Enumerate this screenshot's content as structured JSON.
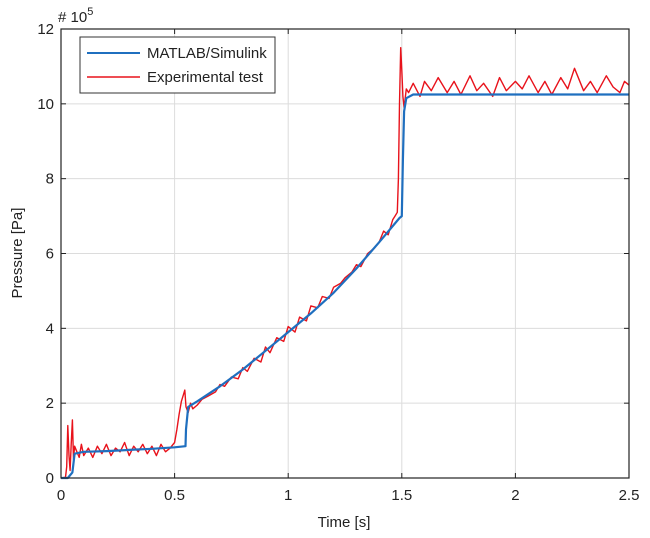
{
  "chart_data": {
    "type": "line",
    "title": "",
    "xlabel": "Time [s]",
    "ylabel": "Pressure [Pa]",
    "y_multiplier_label": "# 10",
    "y_multiplier_exponent": "5",
    "xlim": [
      0,
      2.5
    ],
    "ylim": [
      0,
      12
    ],
    "x_ticks": [
      0,
      0.5,
      1,
      1.5,
      2,
      2.5
    ],
    "x_tick_labels": [
      "0",
      "0.5",
      "1",
      "1.5",
      "2",
      "2.5"
    ],
    "y_ticks": [
      0,
      2,
      4,
      6,
      8,
      10,
      12
    ],
    "y_tick_labels": [
      "0",
      "2",
      "4",
      "6",
      "8",
      "10",
      "12"
    ],
    "grid": true,
    "legend_position": "top-left",
    "series": [
      {
        "name": "MATLAB/Simulink",
        "color": "#1f6fbf",
        "x": [
          0,
          0.03,
          0.05,
          0.06,
          0.1,
          0.2,
          0.3,
          0.4,
          0.5,
          0.548,
          0.55,
          0.56,
          0.6,
          0.7,
          0.8,
          0.9,
          1.0,
          1.1,
          1.2,
          1.3,
          1.4,
          1.49,
          1.5,
          1.505,
          1.51,
          1.52,
          1.55,
          1.6,
          1.8,
          2.0,
          2.2,
          2.4,
          2.5
        ],
        "values": [
          0,
          0,
          0.15,
          0.65,
          0.7,
          0.72,
          0.75,
          0.78,
          0.82,
          0.85,
          1.3,
          1.9,
          2.05,
          2.45,
          2.9,
          3.4,
          3.9,
          4.4,
          4.95,
          5.6,
          6.3,
          6.95,
          7.0,
          8.5,
          9.8,
          10.15,
          10.25,
          10.25,
          10.25,
          10.25,
          10.25,
          10.25,
          10.25
        ]
      },
      {
        "name": "Experimental test",
        "color": "#e8121b",
        "x": [
          0,
          0.02,
          0.025,
          0.03,
          0.035,
          0.04,
          0.045,
          0.05,
          0.055,
          0.06,
          0.07,
          0.08,
          0.09,
          0.1,
          0.12,
          0.14,
          0.16,
          0.18,
          0.2,
          0.22,
          0.24,
          0.26,
          0.28,
          0.3,
          0.32,
          0.34,
          0.36,
          0.38,
          0.4,
          0.42,
          0.44,
          0.46,
          0.48,
          0.5,
          0.51,
          0.52,
          0.53,
          0.54,
          0.545,
          0.55,
          0.56,
          0.57,
          0.58,
          0.6,
          0.62,
          0.65,
          0.68,
          0.7,
          0.72,
          0.75,
          0.78,
          0.8,
          0.82,
          0.85,
          0.88,
          0.9,
          0.92,
          0.95,
          0.98,
          1.0,
          1.03,
          1.05,
          1.08,
          1.1,
          1.13,
          1.15,
          1.18,
          1.2,
          1.23,
          1.25,
          1.28,
          1.3,
          1.32,
          1.35,
          1.38,
          1.4,
          1.42,
          1.44,
          1.46,
          1.47,
          1.48,
          1.485,
          1.49,
          1.495,
          1.5,
          1.505,
          1.51,
          1.52,
          1.53,
          1.55,
          1.58,
          1.6,
          1.63,
          1.66,
          1.7,
          1.73,
          1.76,
          1.8,
          1.83,
          1.86,
          1.9,
          1.93,
          1.96,
          2.0,
          2.03,
          2.06,
          2.1,
          2.13,
          2.16,
          2.2,
          2.23,
          2.26,
          2.3,
          2.33,
          2.36,
          2.4,
          2.43,
          2.46,
          2.48,
          2.5
        ],
        "values": [
          0,
          0.02,
          0.3,
          1.4,
          0.6,
          0.2,
          0.9,
          1.55,
          0.5,
          0.85,
          0.7,
          0.55,
          0.9,
          0.6,
          0.8,
          0.55,
          0.85,
          0.65,
          0.9,
          0.6,
          0.8,
          0.7,
          0.95,
          0.6,
          0.85,
          0.7,
          0.9,
          0.65,
          0.85,
          0.6,
          0.9,
          0.7,
          0.8,
          0.95,
          1.3,
          1.7,
          2.05,
          2.25,
          2.35,
          1.9,
          1.75,
          2.0,
          1.85,
          1.95,
          2.1,
          2.2,
          2.3,
          2.5,
          2.45,
          2.7,
          2.65,
          2.95,
          2.85,
          3.2,
          3.1,
          3.5,
          3.35,
          3.75,
          3.65,
          4.05,
          3.9,
          4.3,
          4.2,
          4.6,
          4.55,
          4.85,
          4.8,
          5.1,
          5.2,
          5.35,
          5.5,
          5.7,
          5.65,
          6.0,
          6.15,
          6.3,
          6.6,
          6.5,
          6.9,
          7.0,
          7.1,
          8.0,
          10.0,
          11.5,
          10.9,
          10.2,
          9.9,
          10.4,
          10.3,
          10.55,
          10.2,
          10.6,
          10.35,
          10.7,
          10.3,
          10.6,
          10.25,
          10.75,
          10.35,
          10.55,
          10.2,
          10.7,
          10.35,
          10.6,
          10.4,
          10.75,
          10.3,
          10.6,
          10.25,
          10.7,
          10.4,
          10.95,
          10.35,
          10.6,
          10.3,
          10.75,
          10.45,
          10.3,
          10.6,
          10.5
        ]
      }
    ]
  }
}
